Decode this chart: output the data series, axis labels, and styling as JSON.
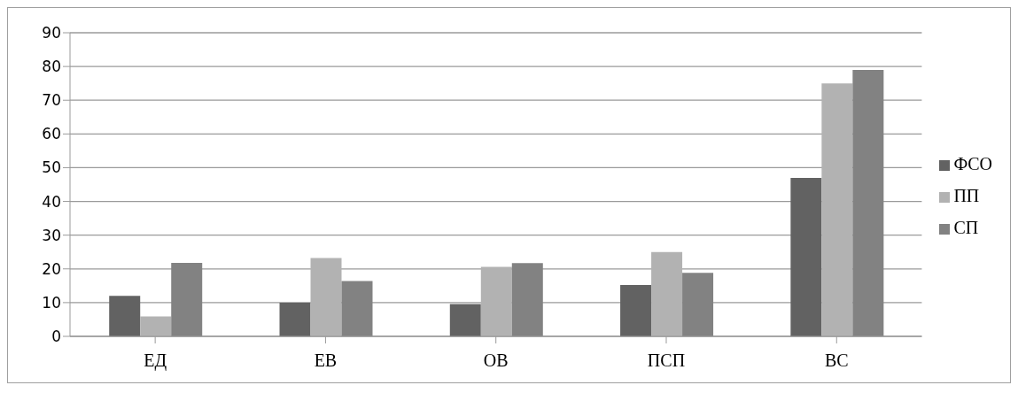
{
  "chart_data": {
    "type": "bar",
    "categories": [
      "ЕД",
      "ЕВ",
      "ОВ",
      "ПСП",
      "ВС"
    ],
    "series": [
      {
        "name": "ФСО",
        "color": "#626262",
        "values": [
          12,
          10,
          9.6,
          15.2,
          47
        ]
      },
      {
        "name": "ПП",
        "color": "#b2b2b2",
        "values": [
          5.9,
          23.2,
          20.6,
          25,
          75
        ]
      },
      {
        "name": "СП",
        "color": "#828282",
        "values": [
          21.8,
          16.4,
          21.7,
          18.8,
          79
        ]
      }
    ],
    "ylim": [
      0,
      90
    ],
    "yticks": [
      0,
      10,
      20,
      30,
      40,
      50,
      60,
      70,
      80,
      90
    ],
    "grid": "y",
    "legend": "right"
  }
}
